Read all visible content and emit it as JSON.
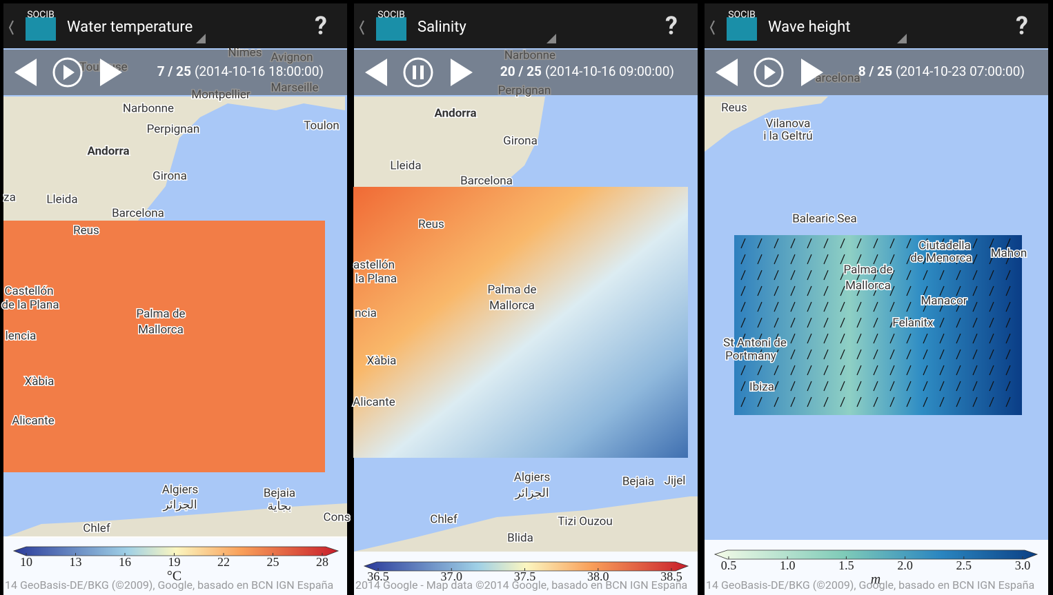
{
  "panels": [
    {
      "title": "Water temperature",
      "frame": "7 / 25",
      "time": "(2014-10-16 18:00:00)",
      "map_labels": [
        "Nimes",
        "Avignon",
        "Toulouse",
        "Montpellier",
        "Marseille",
        "Narbonne",
        "Toulon",
        "Perpignan",
        "Andorra",
        "Girona",
        "za",
        "Lleida",
        "Barcelona",
        "Reus",
        "Castellón",
        "de la Plana",
        "Palma de",
        "Mallorca",
        "lencia",
        "Xàbia",
        "Alicante",
        "Algiers",
        "الجزائر",
        "Bejaia",
        "بجاية",
        "Chlef",
        "Cons"
      ],
      "ticks": [
        "10",
        "13",
        "16",
        "19",
        "22",
        "25",
        "28"
      ],
      "unit": "°C",
      "attribution": "14 GeoBasis-DE/BKG (©2009), Google, basado en BCN IGN España"
    },
    {
      "title": "Salinity",
      "frame": "20 / 25",
      "time": "(2014-10-16 09:00:00)",
      "map_labels": [
        "Narbonne",
        "Perpignan",
        "Andorra",
        "Girona",
        "Lleida",
        "Barcelona",
        "Reus",
        "astellón",
        "la Plana",
        "Palma de",
        "Mallorca",
        "ncia",
        "Xàbia",
        "Alicante",
        "Algiers",
        "الجزائر",
        "Bejaia",
        "Jijel",
        "Chlef",
        "Tizi Ouzou",
        "Blida"
      ],
      "ticks": [
        "36.5",
        "37.0",
        "37.5",
        "38.0",
        "38.5"
      ],
      "unit": "",
      "attribution": "2014 Google - Map data ©2014 Google, basado en BCN IGN España"
    },
    {
      "title": "Wave height",
      "frame": "8 / 25",
      "time": "(2014-10-23 07:00:00)",
      "map_labels": [
        "arcelona",
        "Reus",
        "Vilanova",
        "i la Geltrú",
        "Balearic Sea",
        "Ciutadella",
        "de Menorca",
        "Mahon",
        "Palma de",
        "Mallorca",
        "Manacor",
        "Felanitx",
        "St Antoni de",
        "Portmany",
        "Ibiza"
      ],
      "ticks": [
        "0.5",
        "1.0",
        "1.5",
        "2.0",
        "2.5",
        "3.0"
      ],
      "unit": "m",
      "attribution": "14 GeoBasis-DE/BKG (©2009), Google, basado en BCN IGN España"
    }
  ]
}
